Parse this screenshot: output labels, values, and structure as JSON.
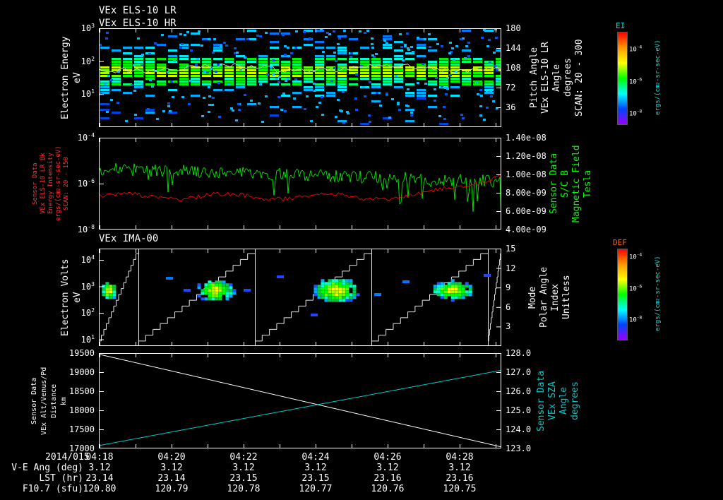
{
  "app": {
    "background": "#000000"
  },
  "chart_data": [
    {
      "type": "heatmap",
      "title": "VEx ELS-10 LR",
      "title2": "VEx ELS-10 HR",
      "ylabel_lines": [
        "Electron Energy",
        "eV"
      ],
      "y_ticks": [
        "10^3",
        "10^2",
        "10^1"
      ],
      "y_scale": "log",
      "right_axis": {
        "label_lines": [
          "Pitch Angle",
          "VEx ELS-10 LR",
          "Angle",
          "degrees",
          "SCAN: 20 - 300"
        ],
        "ticks": [
          "180",
          "144",
          "108",
          "72",
          "36"
        ],
        "range": [
          0,
          180
        ]
      },
      "colorbar": {
        "title": "EI",
        "title_color": "#00e5e5",
        "ticks": [
          "10^-4",
          "10^-6",
          "10^-8"
        ],
        "units": "ergs/(cm^2-sr-sec-eV)",
        "palette_top_to_bottom": [
          "#ff0000",
          "#ff9900",
          "#ffff00",
          "#00ff00",
          "#00ffff",
          "#0044ff",
          "#9900ff"
        ]
      },
      "content": {
        "band_center_log_ev": 1.72,
        "trace_color": "#dddddd",
        "description": "Dense electron flux band near 30-80 eV (green/yellow) with scattered cyan/blue low-flux points and a white mean-energy trace"
      }
    },
    {
      "type": "line",
      "left_axis": {
        "label_lines": [
          "Sensor Data",
          "VEx ELS-10 LR Bk",
          "Energy Intensity",
          "ergs/(cm^2-sr-sec-eV)",
          "SCAN: 20 - 150"
        ],
        "label_color": "#ff3333",
        "ticks": [
          "10^-4",
          "10^-6",
          "10^-8"
        ],
        "scale": "log"
      },
      "right_axis": {
        "label_lines": [
          "Sensor Data",
          "S/C B",
          "Magnetic Field",
          "Tesla"
        ],
        "label_color": "#00ff00",
        "ticks": [
          "1.40e-08",
          "1.20e-08",
          "1.00e-08",
          "8.00e-09",
          "6.00e-09",
          "4.00e-09"
        ]
      },
      "series": [
        {
          "name": "energy-intensity",
          "color": "#00dd00",
          "axis": "left",
          "log_start": -5.35,
          "log_end": -5.9,
          "noise_log": 0.55
        },
        {
          "name": "magnetic-field",
          "color": "#ff0000",
          "axis": "right",
          "start_e9": 7.6,
          "end_e9": 10.0,
          "noise_e9": 0.5
        }
      ]
    },
    {
      "type": "heatmap",
      "title": "VEx IMA-00",
      "ylabel_lines": [
        "Electron Volts",
        "eV"
      ],
      "y_ticks": [
        "10^4",
        "10^3",
        "10^2",
        "10^1"
      ],
      "y_scale": "log",
      "right_axis": {
        "label_lines": [
          "Mode",
          "Polar Angle",
          "Index",
          "Unitless"
        ],
        "ticks": [
          "15",
          "12",
          "9",
          "6",
          "3"
        ],
        "range": [
          0,
          15
        ]
      },
      "colorbar": {
        "title": "DEF",
        "title_color": "#ff6600",
        "ticks": [
          "10^-4",
          "10^-6",
          "10^-8"
        ],
        "units": "ergs/(cm^2-sr-sec-eV)",
        "palette_top_to_bottom": [
          "#ff0000",
          "#ff9900",
          "#ffff00",
          "#00ff00",
          "#00ffff",
          "#0044ff",
          "#9900ff"
        ]
      },
      "content": {
        "blob_time_fractions": [
          0.02,
          0.285,
          0.585,
          0.875
        ],
        "blob_center_log_ev": 2.9,
        "stair_line_color": "#e8e8e8",
        "description": "Four ion clusters near 1 keV; stepped polar-angle index sawtooth per scan with vertical scan separators"
      }
    },
    {
      "type": "line",
      "left_axis": {
        "label_lines": [
          "Sensor Data",
          "VEx Alt/Venus/Pd",
          "Distance",
          "km"
        ],
        "label_color": "#ffffff",
        "ticks": [
          "19500",
          "19000",
          "18500",
          "18000",
          "17500",
          "17000"
        ],
        "range": [
          17000,
          19500
        ]
      },
      "right_axis": {
        "label_lines": [
          "Sensor Data",
          "VEx SZA",
          "Angle",
          "degrees"
        ],
        "label_color": "#00cccc",
        "ticks": [
          "128.0",
          "127.0",
          "126.0",
          "125.0",
          "124.0",
          "123.0"
        ],
        "range": [
          123.0,
          128.0
        ]
      },
      "series": [
        {
          "name": "altitude-km",
          "color": "#ffffff",
          "axis": "left",
          "start": 19470,
          "end": 17040
        },
        {
          "name": "sza-deg",
          "color": "#00cccc",
          "axis": "right",
          "start": 123.15,
          "end": 127.1
        }
      ]
    }
  ],
  "x_axis": {
    "date_label": "2014/015",
    "time_ticks": [
      "04:18",
      "04:20",
      "04:22",
      "04:24",
      "04:26",
      "04:28"
    ]
  },
  "footer_rows": [
    {
      "label": "V-E Ang (deg)",
      "values": [
        "3.12",
        "3.12",
        "3.12",
        "3.12",
        "3.12",
        "3.12"
      ]
    },
    {
      "label": "LST (hr)",
      "values": [
        "23.14",
        "23.14",
        "23.15",
        "23.15",
        "23.16",
        "23.16"
      ]
    },
    {
      "label": "F10.7 (sfu)",
      "values": [
        "120.80",
        "120.79",
        "120.78",
        "120.77",
        "120.76",
        "120.75"
      ]
    }
  ]
}
